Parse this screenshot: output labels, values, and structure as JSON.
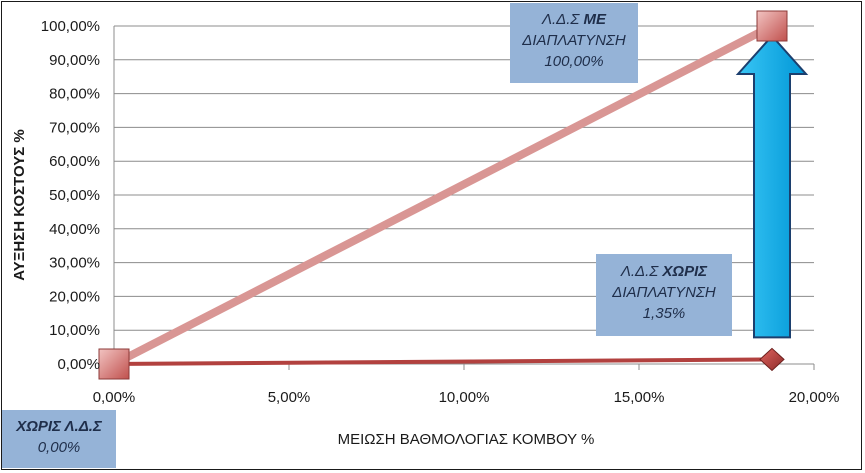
{
  "chart_data": {
    "type": "line",
    "title": "",
    "xlabel": "ΜΕΙΩΣΗ ΒΑΘΜΟΛΟΓΙΑΣ ΚΟΜΒΟΥ %",
    "ylabel": "ΑΥΞΗΣΗ ΚΟΣΤΟΥΣ %",
    "xlim": [
      0,
      20
    ],
    "ylim": [
      0,
      100
    ],
    "x_ticks": [
      "0,00%",
      "5,00%",
      "10,00%",
      "15,00%",
      "20,00%"
    ],
    "y_ticks": [
      "0,00%",
      "10,00%",
      "20,00%",
      "30,00%",
      "40,00%",
      "50,00%",
      "60,00%",
      "70,00%",
      "80,00%",
      "90,00%",
      "100,00%"
    ],
    "grid": "horizontal",
    "legend": "none",
    "series": [
      {
        "color": "#d99694",
        "marker": "square",
        "points": [
          [
            0,
            0
          ],
          [
            18.8,
            100
          ]
        ]
      },
      {
        "color": "#b2413f",
        "marker": "diamond",
        "points": [
          [
            0,
            0
          ],
          [
            18.8,
            1.35
          ]
        ]
      }
    ],
    "annotations": [
      {
        "arrow": "up",
        "color": "#00b0f0",
        "x": 18.8,
        "from_y": 1.35,
        "to_y": 100
      }
    ]
  },
  "callouts": {
    "with_widening": {
      "prefix": "Λ.Δ.Σ ",
      "emph": "ΜΕ",
      "line2": "ΔΙΑΠΛΑΤΥΝΣΗ",
      "line3": "100,00%"
    },
    "without_widening": {
      "prefix": "Λ.Δ.Σ ",
      "emph": "ΧΩΡΙΣ",
      "line2": "ΔΙΑΠΛΑΤΥΝΣΗ",
      "line3": "1,35%"
    },
    "without_lds": {
      "emph": "ΧΩΡΙΣ Λ.Δ.Σ",
      "line2": "0,00%"
    }
  }
}
